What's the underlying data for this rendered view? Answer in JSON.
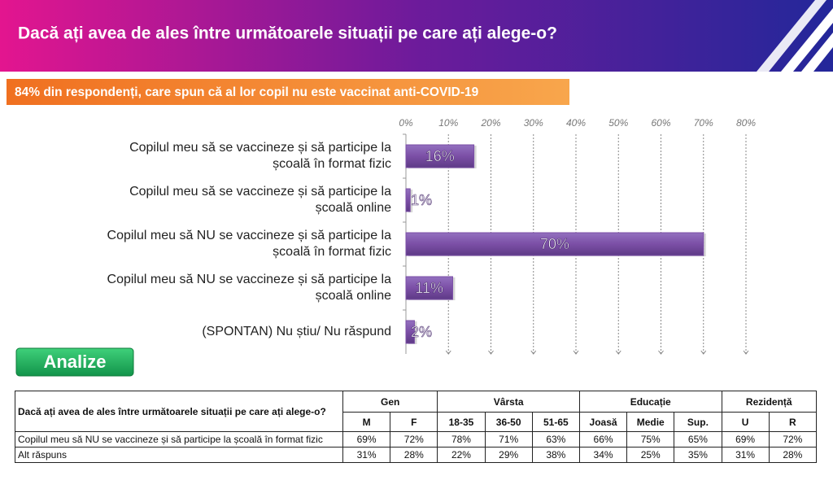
{
  "header": {
    "title": "Dacă ați avea de ales între următoarele situații pe care ați alege-o?"
  },
  "banner": "84% din respondenți, care spun că al lor copil nu este vaccinat anti-COVID-19",
  "button": "Analize",
  "chart_data": {
    "type": "hbar",
    "categories": [
      "Copilul meu să se vaccineze și să participe la\nșcoală în format fizic",
      "Copilul meu să se vaccineze și să participe la\nșcoală online",
      "Copilul meu să NU se vaccineze și să participe la\nșcoală în format fizic",
      "Copilul meu să NU se vaccineze și să participe la\nșcoală online",
      "(SPONTAN) Nu știu/ Nu răspund"
    ],
    "values": [
      16,
      1,
      70,
      11,
      2
    ],
    "value_labels": [
      "16%",
      "1%",
      "70%",
      "11%",
      "2%"
    ],
    "color": "#7b4fa6",
    "xlim": [
      0,
      80
    ],
    "xticks": [
      {
        "value": 0,
        "label": "0%"
      },
      {
        "value": 10,
        "label": "10%"
      },
      {
        "value": 20,
        "label": "20%"
      },
      {
        "value": 30,
        "label": "30%"
      },
      {
        "value": 40,
        "label": "40%"
      },
      {
        "value": 50,
        "label": "50%"
      },
      {
        "value": 60,
        "label": "60%"
      },
      {
        "value": 70,
        "label": "70%"
      },
      {
        "value": 80,
        "label": "80%"
      }
    ],
    "grid": true
  },
  "table": {
    "question": "Dacă ați avea de ales între următoarele situații pe care ați alege-o?",
    "groups": [
      "Gen",
      "Vârsta",
      "Educație",
      "Rezidență"
    ],
    "columns": [
      "M",
      "F",
      "18-35",
      "36-50",
      "51-65",
      "Joasă",
      "Medie",
      "Sup.",
      "U",
      "R"
    ],
    "rows": [
      {
        "label": "Copilul meu să NU se vaccineze și să participe la școală în format fizic",
        "values": [
          "69%",
          "72%",
          "78%",
          "71%",
          "63%",
          "66%",
          "75%",
          "65%",
          "69%",
          "72%"
        ]
      },
      {
        "label": "Alt răspuns",
        "values": [
          "31%",
          "28%",
          "22%",
          "29%",
          "38%",
          "34%",
          "25%",
          "35%",
          "31%",
          "28%"
        ]
      }
    ]
  }
}
